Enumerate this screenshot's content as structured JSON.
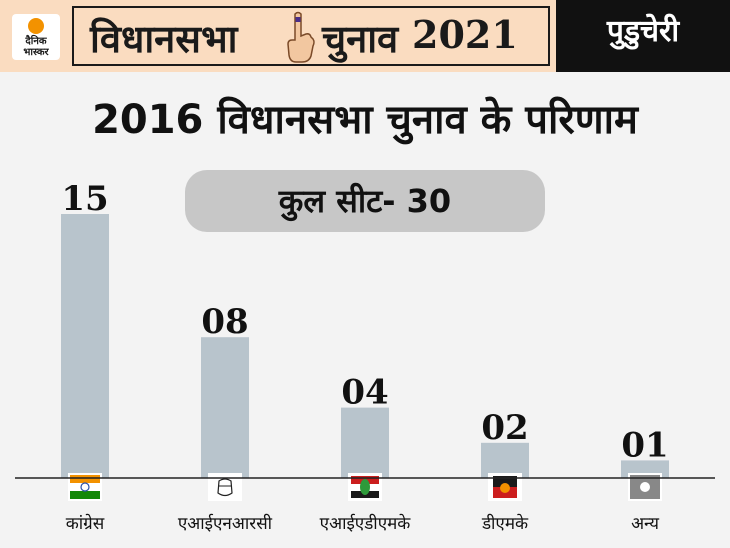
{
  "header": {
    "logo_line1": "दैनिक",
    "logo_line2": "भास्कर",
    "title_part1": "विधानसभा",
    "title_part2": "चुनाव",
    "title_year": "2021",
    "state": "पुडुचेरी"
  },
  "main_title": "2016 विधानसभा चुनाव के परिणाम",
  "total_seats_label": "कुल सीट- 30",
  "colors": {
    "header_bg": "#fadcc0",
    "bar": "#b8c4cc",
    "accent_orange": "#f39200",
    "dark": "#111111"
  },
  "chart_data": {
    "type": "bar",
    "title": "2016 विधानसभा चुनाव के परिणाम",
    "categories": [
      "कांग्रेस",
      "एआईएनआरसी",
      "एआईएडीएमके",
      "डीएमके",
      "अन्य"
    ],
    "values": [
      15,
      8,
      4,
      2,
      1
    ],
    "value_labels": [
      "15",
      "08",
      "04",
      "02",
      "01"
    ],
    "icons": [
      "congress-flag-icon",
      "ainrc-jug-icon",
      "aiadmk-flag-icon",
      "dmk-sun-icon",
      "others-box-icon"
    ],
    "ylim": [
      0,
      15
    ],
    "grid": false,
    "xlabel": "",
    "ylabel": ""
  }
}
